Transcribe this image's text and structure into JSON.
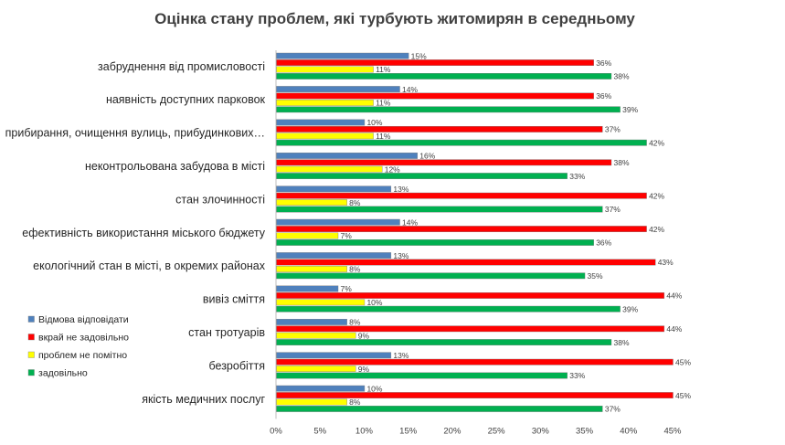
{
  "chart_data": {
    "type": "bar",
    "orientation": "horizontal",
    "title": "Оцінка стану проблем, які турбують житомирян в середньому",
    "xlabel": "",
    "ylabel": "",
    "xlim": [
      0,
      45
    ],
    "x_ticks": [
      "0%",
      "5%",
      "10%",
      "15%",
      "20%",
      "25%",
      "30%",
      "35%",
      "40%",
      "45%"
    ],
    "grid": false,
    "legend_position": "left",
    "categories": [
      "забруднення від промисловості",
      "наявність доступних парковок",
      "прибирання, очищення вулиць, прибудинкових…",
      "неконтрольована забудова в місті",
      "стан злочинності",
      "ефективність використання міського бюджету",
      "екологічний стан в місті, в окремих районах",
      "вивіз сміття",
      "стан тротуарів",
      "безробіття",
      "якість медичних послуг"
    ],
    "series": [
      {
        "name": "Відмова відповідати",
        "color": "#4F81BD",
        "values": [
          15,
          14,
          10,
          16,
          13,
          14,
          13,
          7,
          8,
          13,
          10
        ],
        "labels": [
          "15%",
          "14%",
          "10%",
          "16%",
          "13%",
          "14%",
          "13%",
          "7%",
          "8%",
          "13%",
          "10%"
        ]
      },
      {
        "name": "вкрай не задовільно",
        "color": "#FF0000",
        "values": [
          36,
          36,
          37,
          38,
          42,
          42,
          43,
          44,
          44,
          45,
          45
        ],
        "labels": [
          "36%",
          "36%",
          "37%",
          "38%",
          "42%",
          "42%",
          "43%",
          "44%",
          "44%",
          "45%",
          "45%"
        ]
      },
      {
        "name": "проблем не помітно",
        "color": "#FFFF00",
        "values": [
          11,
          11,
          11,
          12,
          8,
          7,
          8,
          10,
          9,
          9,
          8
        ],
        "labels": [
          "11%",
          "11%",
          "11%",
          "12%",
          "8%",
          "7%",
          "8%",
          "10%",
          "9%",
          "9%",
          "8%"
        ]
      },
      {
        "name": "задовільно",
        "color": "#00B050",
        "values": [
          38,
          39,
          42,
          33,
          37,
          36,
          35,
          39,
          38,
          33,
          37
        ],
        "labels": [
          "38%",
          "39%",
          "42%",
          "33%",
          "37%",
          "36%",
          "35%",
          "39%",
          "38%",
          "33%",
          "37%"
        ]
      }
    ]
  }
}
